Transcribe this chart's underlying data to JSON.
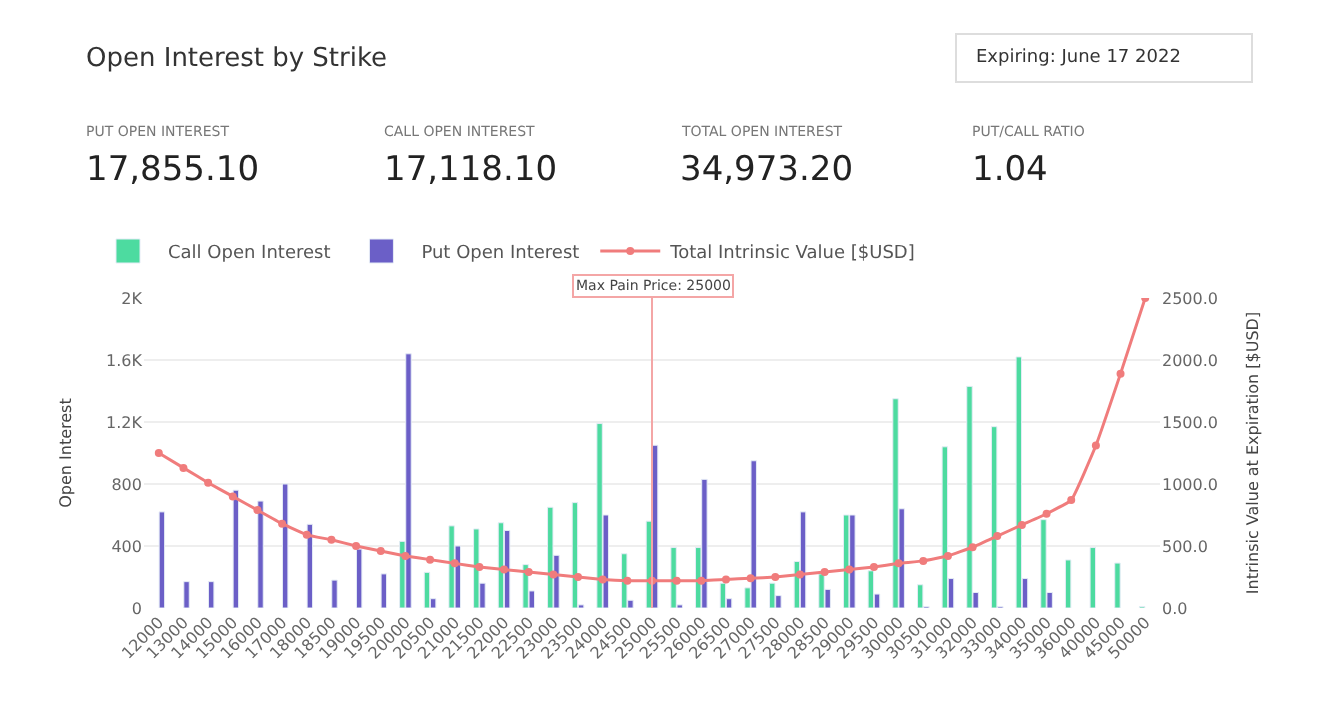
{
  "chart_data": {
    "type": "bar",
    "title": "Open Interest by Strike",
    "annotations": [
      "Expiring: June 17 2022",
      "PUT OPEN INTEREST",
      "17,855.10",
      "CALL OPEN INTEREST",
      "17,118.10",
      "TOTAL OPEN INTEREST",
      "34,973.20",
      "PUT/CALL RATIO",
      "1.04"
    ],
    "categories": [
      "12000",
      "13000",
      "14000",
      "15000",
      "16000",
      "17000",
      "18000",
      "18500",
      "19000",
      "19500",
      "20000",
      "20500",
      "21000",
      "21500",
      "22000",
      "22500",
      "23000",
      "23500",
      "24000",
      "24500",
      "25000",
      "25500",
      "26000",
      "26500",
      "27000",
      "27500",
      "28000",
      "28500",
      "29000",
      "29500",
      "30000",
      "30500",
      "31000",
      "32000",
      "33000",
      "34000",
      "35000",
      "36000",
      "40000",
      "45000",
      "50000"
    ],
    "series": [
      {
        "name": "Call Open Interest",
        "color": "#4ddba0",
        "values": [
          null,
          null,
          null,
          null,
          null,
          null,
          null,
          null,
          null,
          null,
          430,
          230,
          530,
          510,
          550,
          280,
          650,
          680,
          1190,
          350,
          560,
          390,
          390,
          160,
          130,
          160,
          300,
          220,
          600,
          240,
          1350,
          150,
          1040,
          1430,
          1170,
          1620,
          570,
          310,
          390,
          290,
          10
        ]
      },
      {
        "name": "Put Open Interest",
        "color": "#6b5fc7",
        "values": [
          620,
          170,
          170,
          760,
          690,
          800,
          540,
          180,
          380,
          220,
          1640,
          60,
          400,
          160,
          500,
          110,
          340,
          20,
          600,
          50,
          1050,
          20,
          830,
          60,
          950,
          80,
          620,
          120,
          600,
          90,
          640,
          10,
          190,
          100,
          10,
          190,
          100,
          null,
          null,
          null,
          null
        ]
      },
      {
        "name": "Total Intrinsic Value [$USD]",
        "type": "line",
        "axis": "y2",
        "color": "#f07c7c",
        "marker": "circle",
        "values": [
          1250,
          1130,
          1010,
          900,
          790,
          680,
          590,
          550,
          500,
          460,
          420,
          390,
          360,
          330,
          310,
          290,
          270,
          250,
          230,
          220,
          220,
          220,
          220,
          230,
          240,
          250,
          270,
          290,
          310,
          330,
          360,
          380,
          420,
          490,
          580,
          670,
          760,
          870,
          1310,
          1890,
          2500
        ]
      }
    ],
    "ylabel": "Open Interest",
    "y2label": "Intrinsic Value at Expiration [$USD]",
    "ylim": [
      0,
      2000
    ],
    "yticks": [
      0,
      400,
      800,
      {
        "value": 1200,
        "label": "1.2K"
      },
      {
        "value": 1600,
        "label": "1.6K"
      },
      {
        "value": 2000,
        "label": "2K"
      }
    ],
    "y2lim": [
      0,
      2500
    ],
    "y2ticks": [
      {
        "value": 0,
        "label": "0.0"
      },
      {
        "value": 500,
        "label": "500.0"
      },
      {
        "value": 1000,
        "label": "1000.0"
      },
      {
        "value": 1500,
        "label": "1500.0"
      },
      {
        "value": 2000,
        "label": "2000.0"
      },
      {
        "value": 2500,
        "label": "2500.0"
      }
    ],
    "ref_lines": [
      {
        "axis": "x",
        "value": "25000",
        "label": "Max Pain Price: 25000",
        "color": "#f4a6a6"
      }
    ],
    "grid": "y",
    "legend": "top left"
  }
}
